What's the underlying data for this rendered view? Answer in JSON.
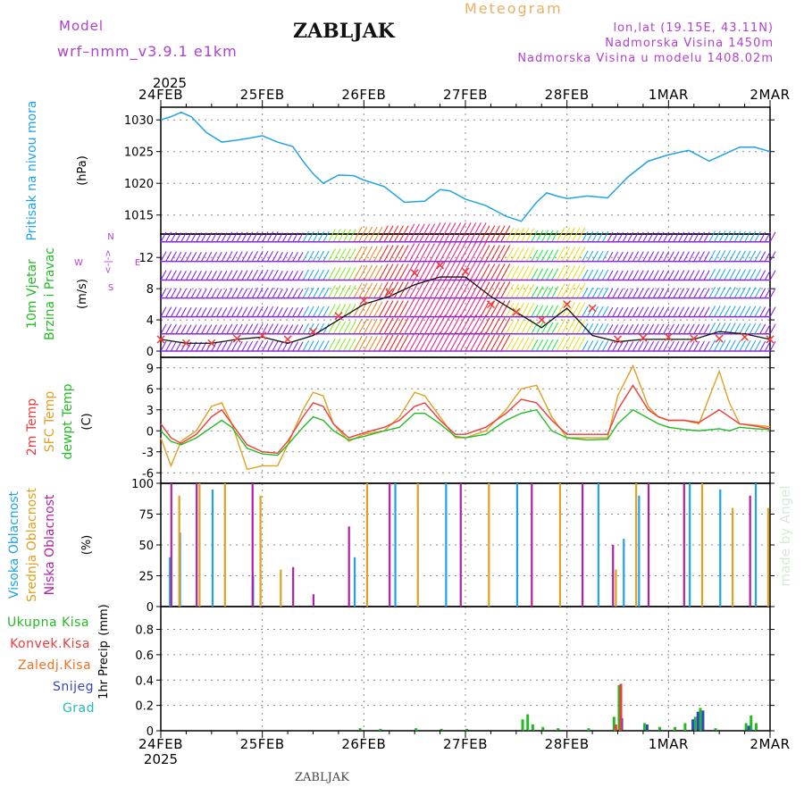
{
  "header": {
    "model_label": "Model",
    "model_name": "wrf–nmm_v3.9.1  e1km",
    "station": "ZABLJAK",
    "product": "Meteogram",
    "coords": "lon,lat (19.15E, 43.11N)",
    "altitude": "Nadmorska Visina 1450m",
    "model_altitude": "Nadmorska Visina u modelu 1408.02m",
    "watermark": "made by Angel",
    "footer_station": "ZABLJAK"
  },
  "colors": {
    "pressure": "#1fa3e6",
    "temp2m": "#ef3b3b",
    "sfc": "#e0a020",
    "dew": "#22bb22",
    "high": "#1fa3e6",
    "mid": "#e0a020",
    "low": "#b01fa8",
    "total": "#22bb22",
    "convective": "#ef3b3b",
    "freezing": "#f07020",
    "snow": "#3344cc",
    "hail": "#22bbbb",
    "header_purple": "#b040d0",
    "header_orange": "#e8b060"
  },
  "chart_data": [
    {
      "type": "line",
      "name": "pressure",
      "year": "2025",
      "x_ticks": [
        "24FEB",
        "25FEB",
        "26FEB",
        "27FEB",
        "28FEB",
        "1MAR",
        "2MAR"
      ],
      "ylabel_title": "Pritisak na nivou mora",
      "ylabel_unit": "(hPa)",
      "ylim": [
        1012,
        1032
      ],
      "yticks": [
        1015,
        1020,
        1025,
        1030
      ],
      "x_days": [
        0,
        0.1,
        0.2,
        0.3,
        0.45,
        0.6,
        0.75,
        0.9,
        1.0,
        1.15,
        1.3,
        1.4,
        1.5,
        1.6,
        1.75,
        1.9,
        2.0,
        2.2,
        2.4,
        2.6,
        2.75,
        2.85,
        3.0,
        3.2,
        3.4,
        3.55,
        3.7,
        3.8,
        3.9,
        4.0,
        4.2,
        4.4,
        4.6,
        4.8,
        5.0,
        5.2,
        5.4,
        5.55,
        5.7,
        5.85,
        6.0
      ],
      "values": [
        1030,
        1030.5,
        1031.2,
        1030.5,
        1028,
        1026.5,
        1026.8,
        1027.2,
        1027.5,
        1026.5,
        1025.8,
        1023.5,
        1021.5,
        1020,
        1021.3,
        1021.2,
        1020.5,
        1019.5,
        1017,
        1017.2,
        1019,
        1018.8,
        1017.5,
        1016.5,
        1014.8,
        1014,
        1017,
        1018.5,
        1018,
        1017.6,
        1018,
        1017.7,
        1021,
        1023.5,
        1024.5,
        1025.2,
        1023.5,
        1024.6,
        1025.7,
        1025.7,
        1025
      ]
    },
    {
      "type": "scatter",
      "name": "wind",
      "ylabel_title": "10m Vjetar",
      "ylabel_title2": "Brzina i Pravac",
      "ylabel_unit": "(m/s)",
      "compass_n": "N",
      "compass_w": "W",
      "compass_e": "E",
      "compass_s": "S",
      "compass_glyph": "<-|->",
      "ylim": [
        -0.8,
        15
      ],
      "yticks": [
        0,
        4,
        8,
        12
      ],
      "x_days": [
        0,
        0.25,
        0.5,
        0.75,
        1.0,
        1.25,
        1.5,
        1.75,
        2.0,
        2.25,
        2.5,
        2.75,
        3.0,
        3.25,
        3.5,
        3.75,
        4.0,
        4.25,
        4.5,
        4.75,
        5.0,
        5.25,
        5.5,
        5.75,
        6.0
      ],
      "speed": [
        1.5,
        1,
        1,
        1.5,
        1.8,
        1,
        2,
        4,
        6,
        7,
        8.5,
        9.5,
        9.5,
        7,
        5,
        3,
        5.5,
        2,
        1.2,
        1.5,
        1.5,
        1.5,
        2.5,
        2.2,
        1.5
      ],
      "gust": [
        1.5,
        1,
        1,
        1.6,
        2,
        1.5,
        2.5,
        4.5,
        6.5,
        7.5,
        10,
        11,
        10.2,
        6,
        5,
        4,
        6,
        5.5,
        1.5,
        1.7,
        1.8,
        1.6,
        1.6,
        1.8,
        1.5
      ],
      "levels": [
        0,
        2.2,
        4.4,
        6.8,
        9.1,
        11.5,
        14
      ]
    },
    {
      "type": "line",
      "name": "temperature",
      "ylabel_title": "2m Temp",
      "ylabel_title2": "SFC Temp",
      "ylabel_title3": "dewpt Temp",
      "ylabel_unit": "(C)",
      "ylim": [
        -7.5,
        10.5
      ],
      "yticks": [
        -6,
        -3,
        0,
        3,
        6,
        9
      ],
      "x_days": [
        0,
        0.1,
        0.2,
        0.35,
        0.5,
        0.6,
        0.7,
        0.85,
        1.0,
        1.15,
        1.25,
        1.4,
        1.5,
        1.6,
        1.7,
        1.85,
        2.0,
        2.2,
        2.35,
        2.5,
        2.6,
        2.75,
        2.9,
        3.0,
        3.2,
        3.4,
        3.55,
        3.7,
        3.85,
        4.0,
        4.2,
        4.4,
        4.5,
        4.65,
        4.8,
        4.9,
        5.0,
        5.15,
        5.3,
        5.5,
        5.6,
        5.7,
        5.85,
        6.0
      ],
      "temp2m": [
        1,
        -1,
        -1.8,
        -0.5,
        2,
        3,
        1,
        -2,
        -3,
        -3.2,
        -1.5,
        2,
        4,
        3.5,
        1,
        -1,
        -0.3,
        0.5,
        1.5,
        3.5,
        4,
        1.5,
        -0.5,
        -0.5,
        0.5,
        2.5,
        4.5,
        4,
        1.5,
        -0.5,
        -0.5,
        -0.5,
        3,
        6.5,
        3,
        2,
        1.5,
        1.5,
        1.2,
        3,
        2,
        1,
        0.7,
        0.3
      ],
      "sfc": [
        -1,
        -5,
        -1.5,
        0,
        3.5,
        4,
        1,
        -5.5,
        -5,
        -5,
        -2,
        3,
        5.5,
        5,
        1,
        -1.5,
        -0.5,
        0,
        2,
        5.5,
        5,
        2,
        -1,
        -1,
        0,
        3,
        6,
        6.5,
        2,
        -1,
        -1,
        -1,
        5,
        9.3,
        3.5,
        2,
        1.5,
        1.5,
        1,
        8.5,
        4,
        1,
        0.8,
        0.6
      ],
      "dew": [
        0,
        -1.5,
        -2,
        -1,
        0.5,
        1.5,
        0.5,
        -2.5,
        -3.3,
        -3.5,
        -2,
        0.5,
        2,
        1.5,
        0,
        -1.3,
        -0.8,
        0,
        0.5,
        2.5,
        2.5,
        1,
        -0.8,
        -1,
        -0.5,
        1.5,
        2.5,
        3,
        0,
        -1,
        -1.3,
        -1.2,
        1,
        3,
        1.8,
        1,
        0.5,
        0.2,
        0,
        0.3,
        0,
        0.5,
        0.3,
        0.2
      ]
    },
    {
      "type": "bar",
      "name": "cloud_cover",
      "ylabel_title": "Visoka Oblacnost",
      "ylabel_title2": "Srednja Oblacnost",
      "ylabel_title3": "Niska Oblacnost",
      "ylabel_unit": "(%)",
      "ylim": [
        0,
        100
      ],
      "yticks": [
        0,
        25,
        50,
        75,
        100
      ],
      "high": [
        [
          0.08,
          40
        ],
        [
          0.18,
          60
        ],
        [
          0.5,
          95
        ],
        [
          0.9,
          25
        ],
        [
          1.9,
          40
        ],
        [
          2.3,
          100
        ],
        [
          2.8,
          100
        ],
        [
          3.5,
          100
        ],
        [
          4.3,
          100
        ],
        [
          4.55,
          55
        ],
        [
          4.7,
          90
        ],
        [
          5.2,
          100
        ],
        [
          5.5,
          95
        ],
        [
          5.85,
          100
        ]
      ],
      "mid": [
        [
          0.15,
          90
        ],
        [
          0.35,
          100
        ],
        [
          0.6,
          100
        ],
        [
          0.95,
          90
        ],
        [
          1.15,
          30
        ],
        [
          2.0,
          100
        ],
        [
          2.5,
          100
        ],
        [
          3.2,
          100
        ],
        [
          3.9,
          100
        ],
        [
          4.45,
          30
        ],
        [
          4.65,
          100
        ],
        [
          5.3,
          100
        ],
        [
          5.6,
          80
        ],
        [
          5.95,
          80
        ]
      ],
      "low": [
        [
          0.05,
          100
        ],
        [
          0.3,
          100
        ],
        [
          0.85,
          100
        ],
        [
          1.25,
          32
        ],
        [
          1.45,
          10
        ],
        [
          1.8,
          65
        ],
        [
          2.2,
          100
        ],
        [
          2.9,
          100
        ],
        [
          3.6,
          100
        ],
        [
          4.1,
          100
        ],
        [
          4.4,
          50
        ],
        [
          4.75,
          100
        ],
        [
          5.1,
          100
        ],
        [
          5.75,
          90
        ]
      ]
    },
    {
      "type": "bar",
      "name": "precipitation",
      "ylabel_title": "1hr Precip",
      "ylabel_unit": "(mm)",
      "ylim": [
        0,
        0.98
      ],
      "yticks": [
        0,
        0.2,
        0.4,
        0.6,
        0.8
      ],
      "legend": [
        "Ukupna  Kisa",
        "Konvek.Kisa",
        "Zaledj.Kisa",
        "Snijeg",
        "Grad"
      ],
      "total": [
        [
          1.95,
          0.02
        ],
        [
          2.15,
          0.015
        ],
        [
          2.5,
          0.02
        ],
        [
          2.75,
          0.015
        ],
        [
          3.0,
          0.015
        ],
        [
          3.55,
          0.09
        ],
        [
          3.6,
          0.13
        ],
        [
          3.65,
          0.05
        ],
        [
          3.75,
          0.03
        ],
        [
          3.9,
          0.02
        ],
        [
          4.2,
          0.02
        ],
        [
          4.45,
          0.11
        ],
        [
          4.5,
          0.36
        ],
        [
          4.75,
          0.06
        ],
        [
          4.9,
          0.03
        ],
        [
          5.05,
          0.03
        ],
        [
          5.15,
          0.06
        ],
        [
          5.25,
          0.11
        ],
        [
          5.3,
          0.18
        ],
        [
          5.45,
          0.02
        ],
        [
          5.75,
          0.06
        ],
        [
          5.8,
          0.12
        ],
        [
          5.85,
          0.06
        ]
      ],
      "convective": [
        [
          4.45,
          0.05
        ],
        [
          4.5,
          0.37
        ]
      ],
      "snow": [
        [
          4.5,
          0.1
        ],
        [
          4.75,
          0.05
        ],
        [
          5.2,
          0.09
        ],
        [
          5.25,
          0.15
        ],
        [
          5.3,
          0.16
        ],
        [
          5.75,
          0.04
        ]
      ]
    }
  ]
}
